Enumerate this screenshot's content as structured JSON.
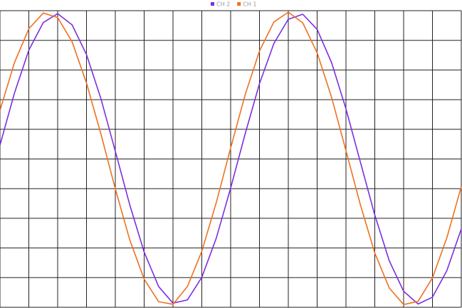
{
  "chart_data": {
    "type": "line",
    "x": [
      0,
      0.5,
      1,
      1.5,
      2,
      2.5,
      3,
      3.5,
      4,
      4.5,
      5,
      5.5,
      6,
      6.5,
      7,
      7.5,
      8,
      8.5,
      9,
      9.5,
      10,
      10.5,
      11,
      11.5,
      12,
      12.5,
      13,
      13.5,
      14,
      14.5,
      15,
      15.5,
      16
    ],
    "series": [
      {
        "name": "CH 2",
        "color": "#7b2fe0",
        "values": [
          0.47,
          2.22,
          3.67,
          4.6,
          4.9,
          4.52,
          3.52,
          2.03,
          0.26,
          -1.55,
          -3.14,
          -4.3,
          -4.86,
          -4.75,
          -3.99,
          -2.67,
          -0.98,
          0.84,
          2.54,
          3.9,
          4.71,
          4.88,
          4.37,
          3.25,
          1.69,
          -0.11,
          -1.89,
          -3.43,
          -4.46,
          -4.89,
          -4.66,
          -3.76,
          -2.36
        ]
      },
      {
        "name": "CH 1",
        "color": "#f07020",
        "values": [
          1.64,
          3.25,
          4.39,
          4.92,
          4.77,
          3.95,
          2.56,
          0.84,
          -1.01,
          -2.73,
          -4.05,
          -4.81,
          -4.9,
          -4.3,
          -3.11,
          -1.47,
          0.37,
          2.16,
          3.64,
          4.62,
          4.95,
          4.59,
          3.58,
          2.08,
          0.28,
          -1.55,
          -3.17,
          -4.35,
          -4.91,
          -4.8,
          -4.01,
          -2.65,
          -0.93
        ]
      }
    ],
    "xlim": [
      0,
      16
    ],
    "ylim": [
      -5,
      5
    ],
    "xticks": [
      0,
      1,
      2,
      3,
      4,
      5,
      6,
      7,
      8,
      9,
      10,
      11,
      12,
      13,
      14,
      15,
      16
    ],
    "yticks": [
      -5,
      -4,
      -3,
      -2,
      -1,
      0,
      1,
      2,
      3,
      4,
      5
    ],
    "grid": true
  }
}
